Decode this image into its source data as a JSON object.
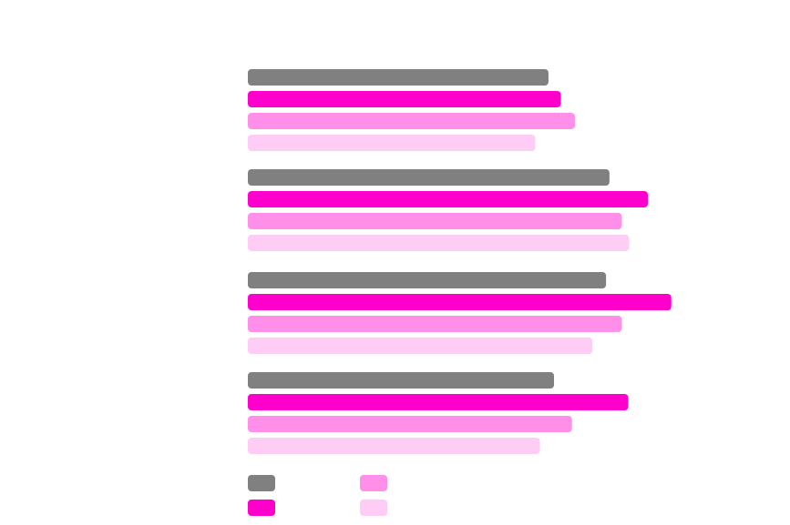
{
  "chart_data": {
    "type": "bar",
    "orientation": "horizontal",
    "title": "",
    "xlabel": "",
    "ylabel": "",
    "categories": [
      "",
      "",
      "",
      ""
    ],
    "xlim": [
      0,
      100
    ],
    "grid": false,
    "legend_position": "bottom-left",
    "series": [
      {
        "name": "",
        "color": "#808080",
        "values": [
          70.5,
          84.8,
          84.0,
          71.8
        ]
      },
      {
        "name": "",
        "color": "#ff00cc",
        "values": [
          73.4,
          93.8,
          99.3,
          89.2
        ]
      },
      {
        "name": "",
        "color": "#ff8fe8",
        "values": [
          76.7,
          87.7,
          87.7,
          76.0
        ]
      },
      {
        "name": "",
        "color": "#ffccf5",
        "values": [
          67.4,
          89.4,
          80.8,
          68.5
        ]
      }
    ]
  }
}
